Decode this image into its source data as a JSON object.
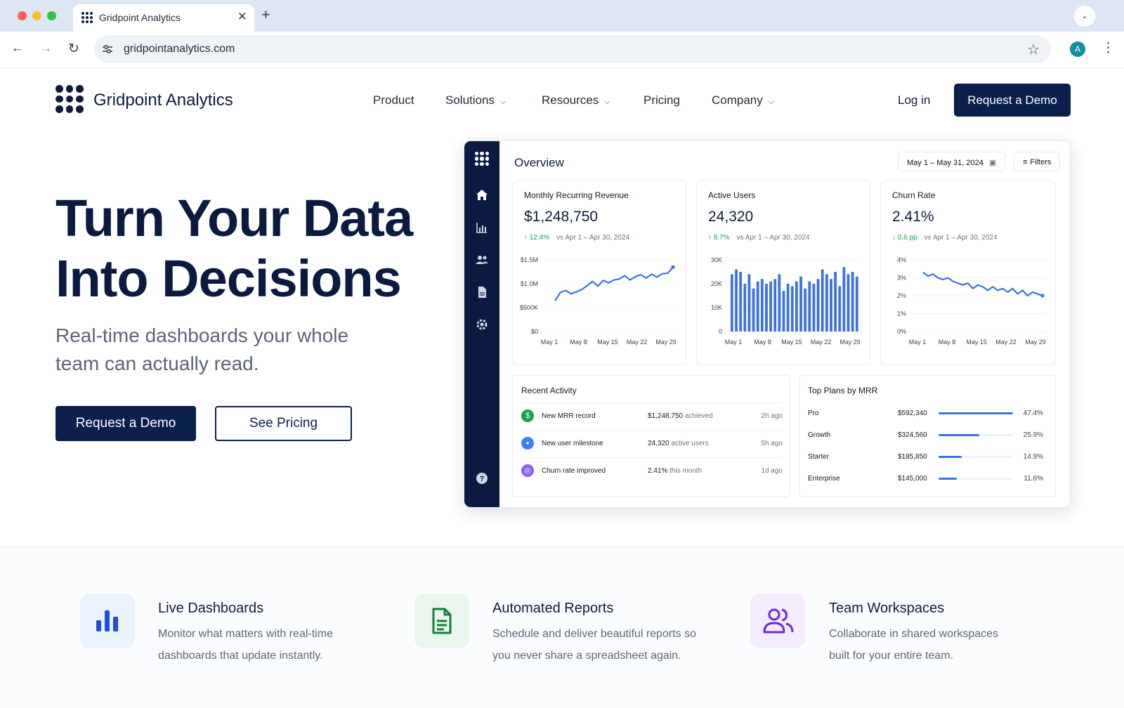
{
  "browser": {
    "tab_title": "Gridpoint Analytics",
    "tab_close": "✕",
    "new_tab": "+",
    "url": "gridpointanalytics.com",
    "profile_initial": "A"
  },
  "site": {
    "brand": "Gridpoint Analytics",
    "nav": {
      "product": "Product",
      "solutions": "Solutions",
      "resources": "Resources",
      "pricing": "Pricing",
      "company": "Company",
      "login": "Log in",
      "cta": "Request a Demo"
    },
    "hero": {
      "title_line1": "Turn Your Data",
      "title_line2": "Into Decisions",
      "subtitle": "Real-time dashboards your whole team can actually read.",
      "cta_primary": "Request a Demo",
      "cta_secondary": "See Pricing"
    }
  },
  "dashboard": {
    "title": "Overview",
    "date_range": "May 1 – May 31, 2024",
    "filters": "Filters",
    "kpis": [
      {
        "title": "Monthly Recurring Revenue",
        "value": "$1,248,750",
        "delta": "↑ 12.4%",
        "compare": "vs Apr 1 – Apr 30, 2024"
      },
      {
        "title": "Active Users",
        "value": "24,320",
        "delta": "↑ 8.7%",
        "compare": "vs Apr 1 – Apr 30, 2024"
      },
      {
        "title": "Churn Rate",
        "value": "2.41%",
        "delta": "↓ 0.6 pp",
        "compare": "vs Apr 1 – Apr 30, 2024"
      }
    ],
    "activity": {
      "title": "Recent Activity",
      "rows": [
        {
          "icon": "$",
          "label": "New MRR record",
          "value": "$1,248,750",
          "suffix": " achieved",
          "time": "2h ago",
          "color": "#16a34a"
        },
        {
          "icon": "●",
          "label": "New user milestone",
          "value": "24,320",
          "suffix": " active users",
          "time": "5h ago",
          "color": "#3b82f6"
        },
        {
          "icon": "◎",
          "label": "Churn rate improved",
          "value": "2.41%",
          "suffix": " this month",
          "time": "1d ago",
          "color": "#8b5cf6"
        }
      ]
    },
    "plans": {
      "title": "Top Plans by MRR",
      "rows": [
        {
          "name": "Pro",
          "value": "$592,340",
          "pct": "47.4%",
          "share": 0.474
        },
        {
          "name": "Growth",
          "value": "$324,560",
          "pct": "25.9%",
          "share": 0.259
        },
        {
          "name": "Starter",
          "value": "$185,850",
          "pct": "14.9%",
          "share": 0.149
        },
        {
          "name": "Enterprise",
          "value": "$145,000",
          "pct": "11.6%",
          "share": 0.116
        }
      ]
    }
  },
  "features": [
    {
      "title": "Live Dashboards",
      "desc": "Monitor what matters with real-time dashboards that update instantly."
    },
    {
      "title": "Automated Reports",
      "desc": "Schedule and deliver beautiful reports so you never share a spreadsheet again."
    },
    {
      "title": "Team Workspaces",
      "desc": "Collaborate in shared workspaces built for your entire team."
    }
  ],
  "chart_data": [
    {
      "type": "line",
      "x_ticks": [
        "May 1",
        "May 8",
        "May 15",
        "May 22",
        "May 29"
      ],
      "y_ticks": [
        "$0",
        "$500K",
        "$1.0M",
        "$1.5M"
      ],
      "ylim": [
        0,
        1500000
      ],
      "series": [
        {
          "values": [
            640000,
            820000,
            860000,
            790000,
            830000,
            880000,
            960000,
            1050000,
            950000,
            1070000,
            1020000,
            1080000,
            1100000,
            1170000,
            1080000,
            1150000,
            1190000,
            1120000,
            1200000,
            1140000,
            1210000,
            1220000,
            1350000
          ]
        }
      ]
    },
    {
      "type": "bar",
      "x_ticks": [
        "May 1",
        "May 8",
        "May 15",
        "May 22",
        "May 29"
      ],
      "y_ticks": [
        "0",
        "10K",
        "20K",
        "30K"
      ],
      "ylim": [
        0,
        30000
      ],
      "values": [
        24000,
        26000,
        25000,
        20000,
        24000,
        18000,
        21000,
        22000,
        20000,
        21000,
        22000,
        24000,
        17000,
        20000,
        19000,
        21000,
        23000,
        18000,
        21000,
        20000,
        22000,
        26000,
        24000,
        22000,
        25000,
        19000,
        27000,
        24000,
        25000,
        23000
      ]
    },
    {
      "type": "line",
      "x_ticks": [
        "May 1",
        "May 8",
        "May 15",
        "May 22",
        "May 29"
      ],
      "y_ticks": [
        "0%",
        "1%",
        "2%",
        "3%",
        "4%"
      ],
      "ylim": [
        0,
        4
      ],
      "series": [
        {
          "values": [
            3.3,
            3.1,
            3.2,
            3.0,
            2.9,
            3.0,
            2.8,
            2.7,
            2.6,
            2.7,
            2.4,
            2.6,
            2.5,
            2.3,
            2.5,
            2.3,
            2.4,
            2.2,
            2.4,
            2.1,
            2.3,
            2.0,
            2.2,
            2.1,
            2.0
          ]
        }
      ]
    }
  ]
}
